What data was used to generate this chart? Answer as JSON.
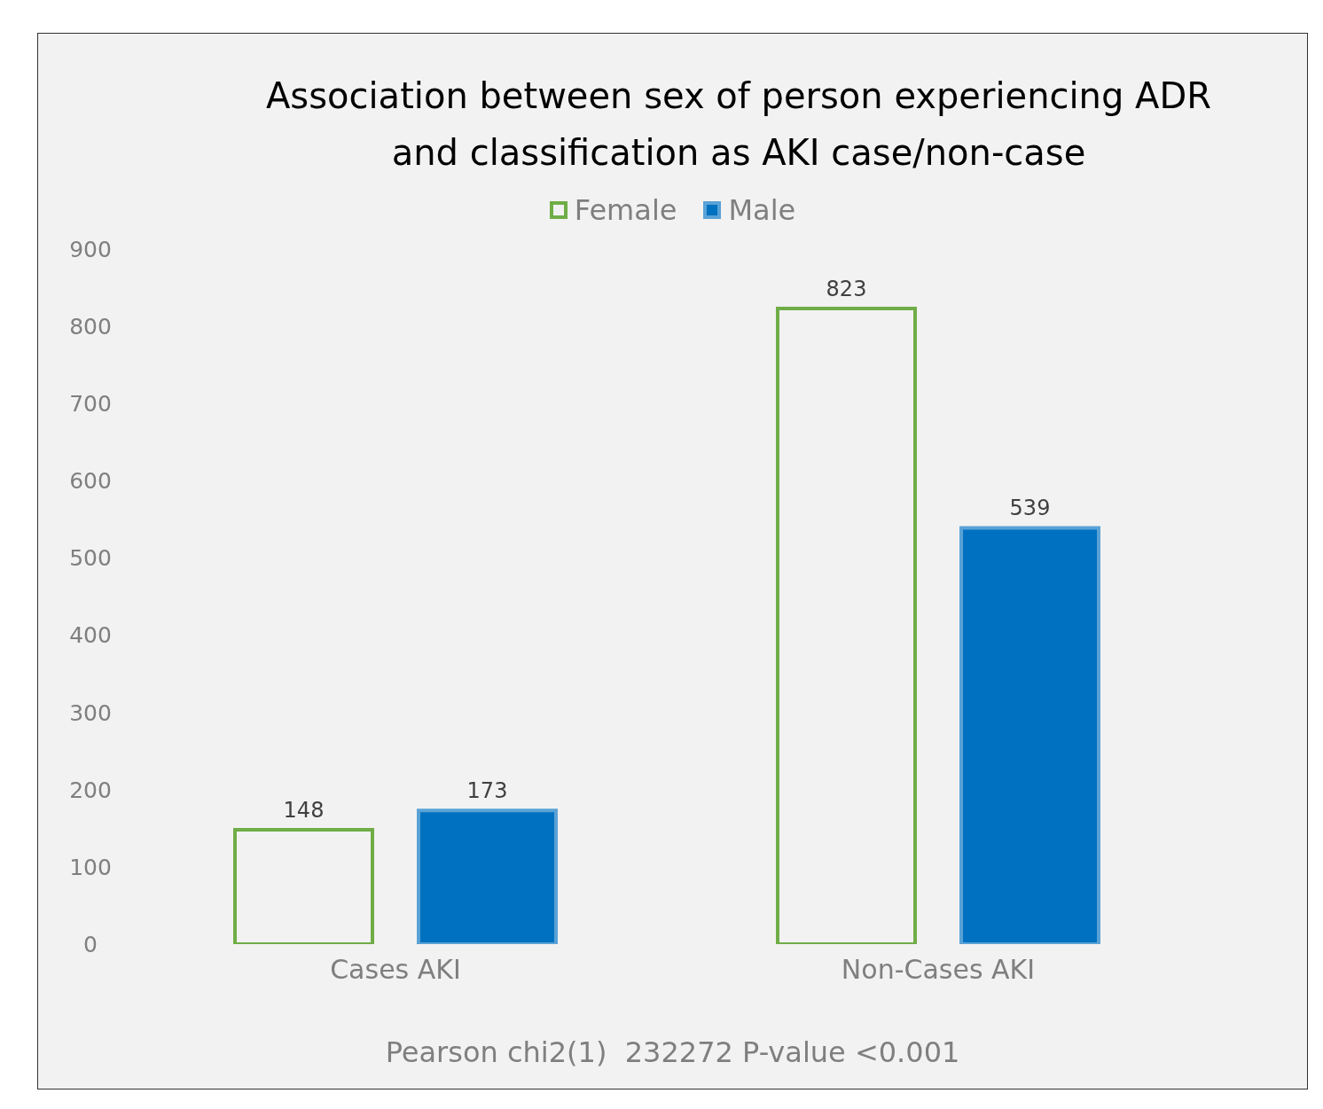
{
  "chart_data": {
    "type": "bar",
    "title": "Association between sex of person experiencing ADR and classification as AKI case/non-case",
    "categories": [
      "Cases AKI",
      "Non-Cases AKI"
    ],
    "series": [
      {
        "name": "Female",
        "color": "#70ad47",
        "values": [
          148,
          823
        ]
      },
      {
        "name": "Male",
        "color": "#0070c0",
        "values": [
          173,
          539
        ]
      }
    ],
    "ylim": [
      0,
      900
    ],
    "yticks": [
      0,
      100,
      200,
      300,
      400,
      500,
      600,
      700,
      800,
      900
    ],
    "legend": "top",
    "data_labels": true,
    "annotations": [
      "Pearson chi2(1)  232272 P-value <0.001"
    ]
  }
}
